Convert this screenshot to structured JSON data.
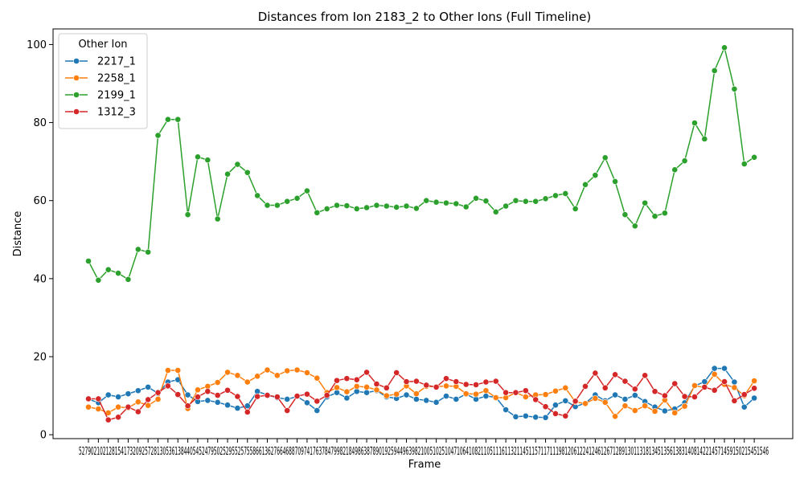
{
  "chart_data": {
    "type": "line",
    "title": "Distances from Ion 2183_2 to Other Ions (Full Timeline)",
    "xlabel": "Frame",
    "ylabel": "Distance",
    "ylim": [
      -1,
      104
    ],
    "yticks": [
      0,
      20,
      40,
      60,
      80,
      100
    ],
    "grid": false,
    "legend_title": "Other Ion",
    "legend_position": "top-left",
    "x": [
      "52",
      "79",
      "96",
      "102",
      "128",
      "154",
      "173",
      "209",
      "257",
      "281",
      "305",
      "361",
      "384",
      "405",
      "452",
      "479",
      "502",
      "529",
      "552",
      "575",
      "586",
      "613",
      "627",
      "664",
      "688",
      "709",
      "741",
      "763",
      "784",
      "799",
      "821",
      "849",
      "863",
      "878",
      "901",
      "925",
      "944",
      "963",
      "982",
      "1005",
      "1025",
      "1047",
      "1064",
      "1082",
      "1105",
      "1116",
      "1132",
      "1145",
      "1157",
      "1171",
      "1198",
      "1206",
      "1224",
      "1246",
      "1267",
      "1289",
      "1301",
      "1318",
      "1345",
      "1356",
      "1383",
      "1408",
      "1422",
      "1457",
      "1459",
      "1502",
      "1545",
      "1546"
    ],
    "x_tick_label_text": "52790210212815417320925728130536138440545247950252955257558661362766468870974176378479982184986387890192594496398210051025104710641082110511161132114511571171119812061224124612671289130113181345135613831408142214571459150215451546",
    "series": [
      {
        "name": "2217_1",
        "color": "#1f77b4",
        "values": [
          9.1,
          8.2,
          10.2,
          9.7,
          10.5,
          11.3,
          12.2,
          10.6,
          13.5,
          14.1,
          10.2,
          8.5,
          8.8,
          8.3,
          7.6,
          6.8,
          7.4,
          11.1,
          10.2,
          9.5,
          9.1,
          9.8,
          8.2,
          6.2,
          9.7,
          10.8,
          9.4,
          11.1,
          10.8,
          11.3,
          9.7,
          9.3,
          10.2,
          9.1,
          8.8,
          8.3,
          9.9,
          9.1,
          10.4,
          9.1,
          9.9,
          9.6,
          6.4,
          4.6,
          4.8,
          4.5,
          4.4,
          7.6,
          8.7,
          7.2,
          8.1,
          10.2,
          8.7,
          10.2,
          9.1,
          10.1,
          8.5,
          7.1,
          6.1,
          6.6,
          8.2,
          12.5,
          13.6,
          17.0,
          17.0,
          13.5,
          7.1,
          9.4
        ]
      },
      {
        "name": "2258_1",
        "color": "#ff7f0e",
        "values": [
          7.1,
          6.6,
          5.6,
          7.1,
          6.9,
          8.4,
          7.5,
          9.1,
          16.5,
          16.5,
          6.7,
          11.5,
          12.4,
          13.4,
          16.0,
          15.2,
          13.5,
          15.0,
          16.6,
          15.2,
          16.4,
          16.6,
          15.9,
          14.5,
          10.8,
          12.1,
          11.0,
          12.4,
          12.2,
          11.5,
          10.0,
          10.4,
          12.5,
          10.5,
          12.4,
          12.3,
          12.5,
          12.4,
          10.5,
          10.4,
          11.3,
          9.5,
          9.5,
          10.8,
          9.7,
          10.2,
          10.3,
          11.2,
          12.0,
          8.4,
          8.0,
          9.3,
          8.3,
          4.7,
          7.4,
          6.2,
          7.4,
          6.0,
          8.9,
          5.6,
          7.3,
          12.6,
          12.1,
          15.5,
          12.9,
          12.1,
          10.0,
          13.8
        ]
      },
      {
        "name": "2199_1",
        "color": "#2ca02c",
        "values": [
          44.5,
          39.6,
          42.3,
          41.4,
          39.8,
          47.5,
          46.8,
          76.7,
          80.8,
          80.8,
          56.4,
          71.2,
          70.4,
          55.3,
          66.8,
          69.3,
          67.2,
          61.3,
          58.8,
          58.8,
          59.8,
          60.6,
          62.5,
          56.9,
          57.9,
          58.8,
          58.7,
          57.9,
          58.2,
          58.8,
          58.6,
          58.3,
          58.6,
          58.0,
          60.0,
          59.6,
          59.4,
          59.2,
          58.4,
          60.6,
          59.9,
          57.1,
          58.6,
          60.0,
          59.8,
          59.8,
          60.5,
          61.3,
          61.8,
          57.9,
          64.1,
          66.5,
          71.0,
          64.9,
          56.4,
          53.5,
          59.4,
          56.0,
          56.8,
          67.9,
          70.2,
          79.9,
          75.8,
          93.3,
          99.2,
          88.6,
          69.4,
          71.1
        ]
      },
      {
        "name": "1312_3",
        "color": "#d62728",
        "values": [
          9.2,
          9.2,
          3.8,
          4.5,
          7.1,
          5.9,
          9.0,
          10.8,
          12.5,
          10.3,
          7.4,
          9.7,
          11.1,
          10.1,
          11.4,
          9.8,
          5.8,
          9.8,
          10.1,
          9.7,
          6.2,
          9.9,
          10.4,
          8.6,
          10.1,
          13.9,
          14.4,
          14.1,
          16.0,
          13.0,
          12.0,
          15.9,
          13.6,
          13.7,
          12.7,
          12.2,
          14.4,
          13.6,
          12.9,
          12.8,
          13.5,
          13.7,
          10.8,
          10.8,
          11.3,
          9.0,
          7.2,
          5.4,
          4.8,
          8.6,
          12.4,
          15.8,
          12.0,
          15.4,
          13.7,
          11.7,
          15.2,
          11.1,
          10.0,
          13.1,
          9.8,
          9.7,
          12.2,
          11.4,
          13.6,
          8.7,
          10.3,
          11.9
        ]
      }
    ]
  }
}
